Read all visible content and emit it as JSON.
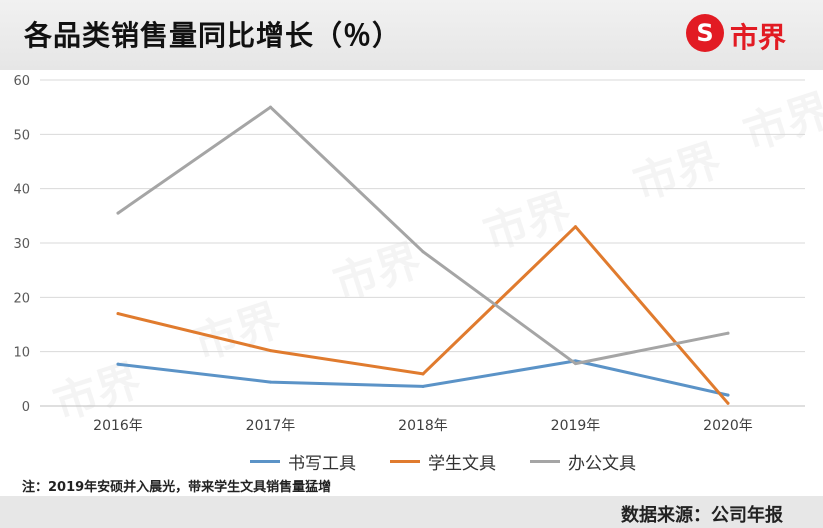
{
  "header": {
    "title": "各品类销售量同比增长（％）",
    "brand": "市界",
    "brand_glyph": "S"
  },
  "chart_data": {
    "type": "line",
    "title": "各品类销售量同比增长（％）",
    "x": [
      "2016年",
      "2017年",
      "2018年",
      "2019年",
      "2020年"
    ],
    "ylim": [
      0,
      60
    ],
    "yticks": [
      "0",
      "10",
      "20",
      "30",
      "40",
      "50",
      "60"
    ],
    "grid": true,
    "legend_position": "bottom",
    "series": [
      {
        "name": "书写工具",
        "color": "#5b93c7",
        "values": [
          7.7,
          4.4,
          3.6,
          8.3,
          2.0
        ]
      },
      {
        "name": "学生文具",
        "color": "#e07b2e",
        "values": [
          17.0,
          10.2,
          5.9,
          33.0,
          0.5
        ]
      },
      {
        "name": "办公文具",
        "color": "#a5a5a5",
        "values": [
          35.5,
          55.0,
          28.4,
          7.8,
          13.4
        ]
      }
    ]
  },
  "watermark": "市界",
  "note": "注：2019年安硕并入晨光，带来学生文具销售量猛增",
  "source": "数据来源：公司年报"
}
